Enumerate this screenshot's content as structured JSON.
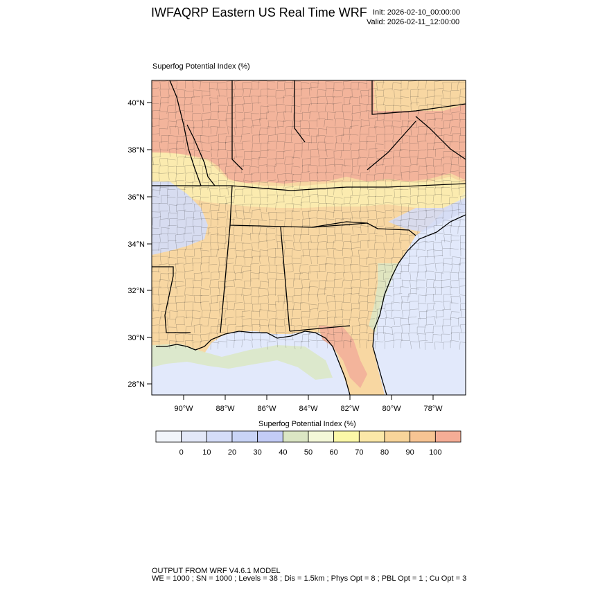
{
  "header": {
    "title": "IWFAQRP Eastern US Real Time WRF",
    "init": "Init: 2026-02-10_00:00:00",
    "valid": "Valid: 2026-02-11_12:00:00"
  },
  "map": {
    "label": "Superfog Potential Index    (%)",
    "lat_ticks": [
      "40°N",
      "38°N",
      "36°N",
      "34°N",
      "32°N",
      "30°N",
      "28°N"
    ],
    "lon_ticks": [
      "90°W",
      "88°W",
      "86°W",
      "84°W",
      "82°W",
      "80°W",
      "78°W"
    ]
  },
  "colorbar": {
    "title": "Superfog Potential Index  (%)",
    "colors": [
      "#f2f5fa",
      "#e3e8f8",
      "#d5ddf8",
      "#c9d4f6",
      "#c3ccf6",
      "#dbe6c4",
      "#f4f8d8",
      "#fbf8a8",
      "#fbe8a8",
      "#f8d59a",
      "#f7c493",
      "#f5ad96"
    ],
    "labels": [
      "0",
      "10",
      "20",
      "30",
      "40",
      "50",
      "60",
      "70",
      "80",
      "90",
      "100"
    ]
  },
  "colors": {
    "ocean": "#e2e9fb",
    "red_zone": "#f2b09a",
    "orange_zone": "#f8d7a2",
    "yellow_zone": "#fcefb2",
    "blue_zone": "#d5dcf4",
    "green_zone": "#dce8c6"
  },
  "footer": {
    "line1": "OUTPUT FROM WRF V4.6.1 MODEL",
    "line2": "WE = 1000 ; SN = 1000 ; Levels = 38 ; Dis = 1.5km ; Phys Opt = 8 ; PBL Opt = 1 ; Cu Opt = 3"
  }
}
